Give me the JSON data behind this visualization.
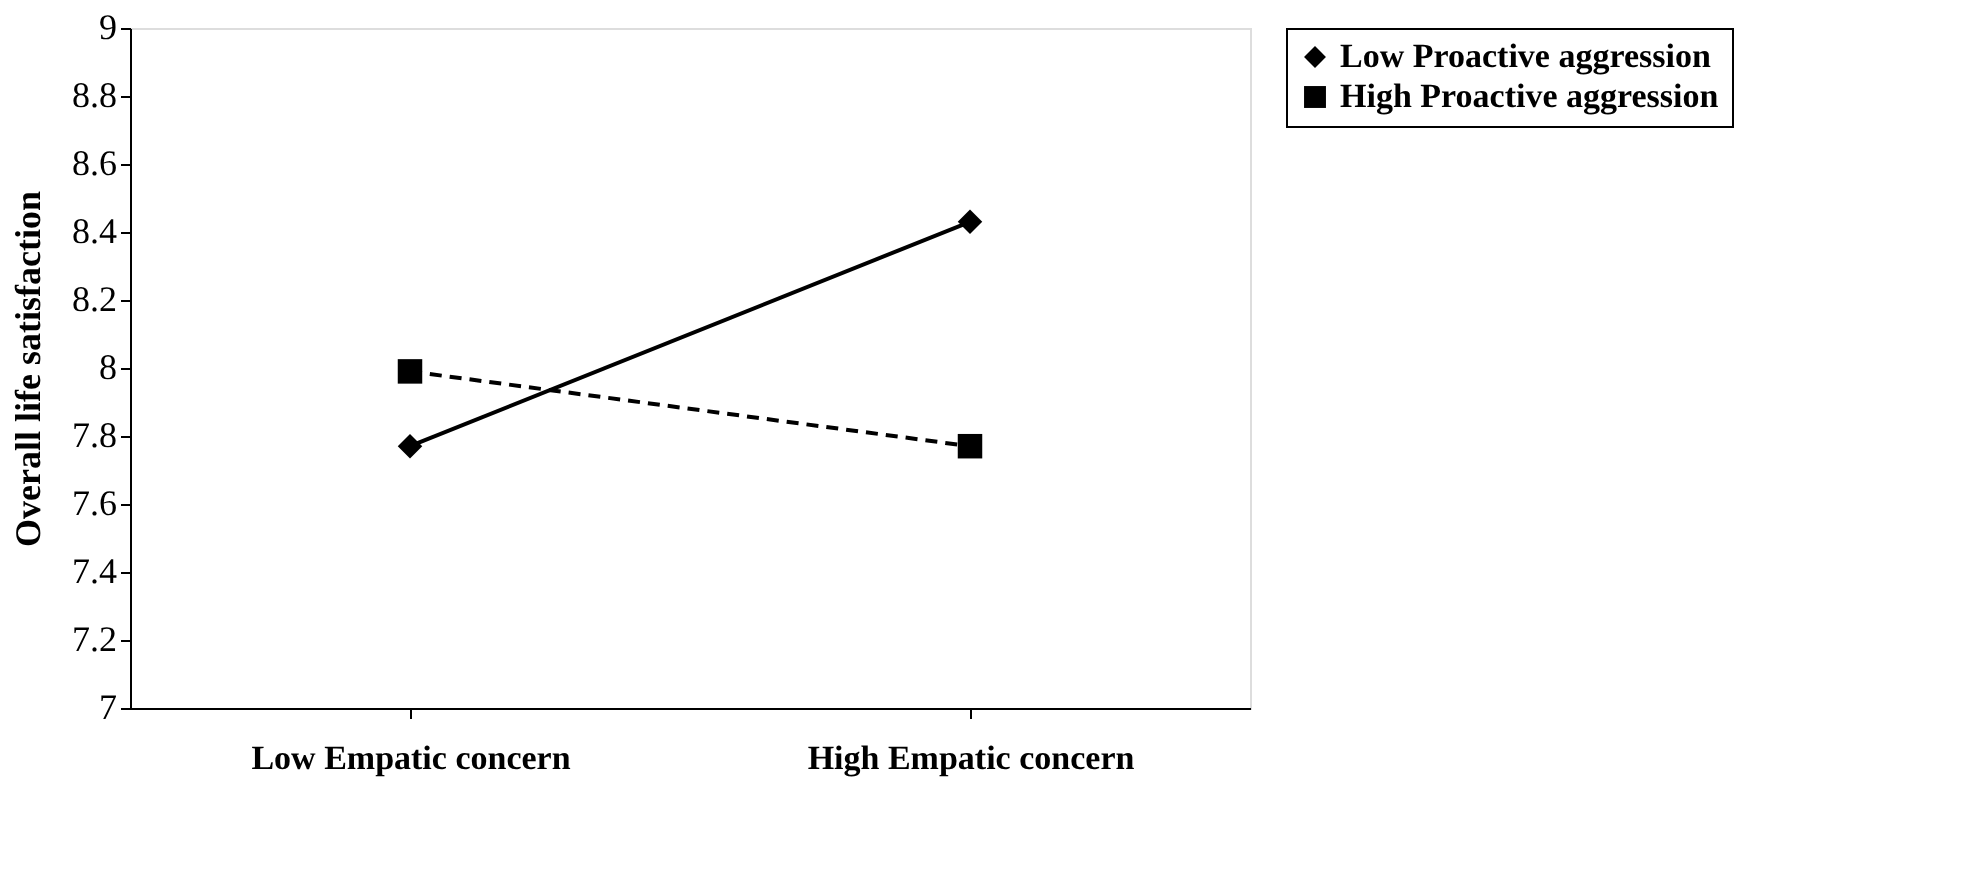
{
  "chart_data": {
    "type": "line",
    "ylabel": "Overall life satisfaction",
    "categories": [
      "Low Empatic concern",
      "High Empatic concern"
    ],
    "series": [
      {
        "name": "Low Proactive aggression",
        "color": "#000000",
        "values": [
          7.77,
          8.43
        ],
        "marker": "diamond",
        "line_style": "solid"
      },
      {
        "name": "High Proactive aggression",
        "color": "#000000",
        "values": [
          7.99,
          7.77
        ],
        "marker": "square",
        "line_style": "dashed"
      }
    ],
    "ylim": [
      7,
      9
    ],
    "yticks": [
      7,
      7.2,
      7.4,
      7.6,
      7.8,
      8,
      8.2,
      8.4,
      8.6,
      8.8,
      9
    ],
    "grid": false,
    "legend": "right"
  }
}
